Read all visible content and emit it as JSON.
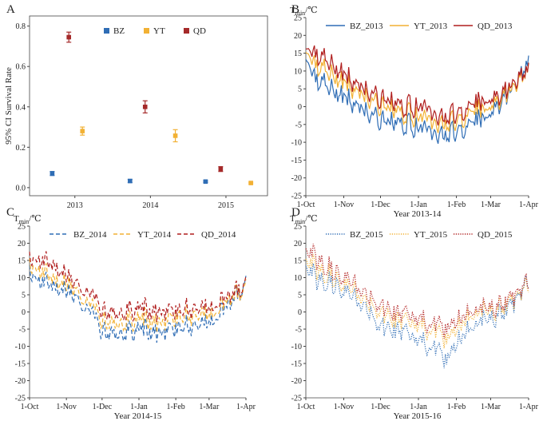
{
  "chart_data": [
    {
      "panel": "A",
      "type": "scatter",
      "ylabel": "95% CI Survival Rate",
      "xlabel": "",
      "ylim": [
        -0.04,
        0.85
      ],
      "yticks": [
        0.0,
        0.2,
        0.4,
        0.6,
        0.8
      ],
      "ytick_labels": [
        "0.0",
        "0.2",
        "0.4",
        "0.6",
        "0.8"
      ],
      "xticks": [
        2013,
        2014,
        2015
      ],
      "xtick_labels": [
        "2013",
        "2014",
        "2015"
      ],
      "legend_position": "top",
      "series": [
        {
          "name": "BZ",
          "color": "#2f6db5",
          "points": [
            {
              "x": 2012.7,
              "y": 0.07,
              "err": 0.01
            },
            {
              "x": 2013.73,
              "y": 0.033,
              "err": 0.008
            },
            {
              "x": 2014.73,
              "y": 0.03,
              "err": 0.004
            }
          ]
        },
        {
          "name": "YT",
          "color": "#f2b134",
          "points": [
            {
              "x": 2013.1,
              "y": 0.28,
              "err": 0.02
            },
            {
              "x": 2014.33,
              "y": 0.257,
              "err": 0.03
            },
            {
              "x": 2015.33,
              "y": 0.023,
              "err": 0.004
            }
          ]
        },
        {
          "name": "QD",
          "color": "#a52a2a",
          "points": [
            {
              "x": 2012.92,
              "y": 0.745,
              "err": 0.025
            },
            {
              "x": 2013.93,
              "y": 0.4,
              "err": 0.03
            },
            {
              "x": 2014.93,
              "y": 0.092,
              "err": 0.012
            }
          ]
        }
      ]
    },
    {
      "panel": "B",
      "type": "line",
      "ylabel": "T_min/℃",
      "xlabel": "Year 2013-14",
      "ylim": [
        -25,
        25
      ],
      "yticks": [
        -25,
        -20,
        -15,
        -10,
        -5,
        0,
        5,
        10,
        15,
        20,
        25
      ],
      "xtick_labels": [
        "1-Oct",
        "1-Nov",
        "1-Dec",
        "1-Jan",
        "1-Feb",
        "1-Mar",
        "1-Apr"
      ],
      "line_style": "solid",
      "legend_position": "top",
      "series": [
        {
          "name": "BZ_2013",
          "color": "#2f6db5",
          "keypoints": [
            [
              0,
              14
            ],
            [
              8,
              8
            ],
            [
              20,
              5
            ],
            [
              35,
              2
            ],
            [
              50,
              -2
            ],
            [
              65,
              -4
            ],
            [
              80,
              -5
            ],
            [
              95,
              -6
            ],
            [
              110,
              -8
            ],
            [
              125,
              -7
            ],
            [
              140,
              -4
            ],
            [
              150,
              -2
            ],
            [
              160,
              2
            ],
            [
              170,
              6
            ],
            [
              182,
              12
            ]
          ]
        },
        {
          "name": "YT_2013",
          "color": "#f2b134",
          "keypoints": [
            [
              0,
              16
            ],
            [
              8,
              12
            ],
            [
              20,
              9
            ],
            [
              35,
              6
            ],
            [
              50,
              2
            ],
            [
              65,
              0
            ],
            [
              80,
              -2
            ],
            [
              95,
              -3
            ],
            [
              110,
              -5
            ],
            [
              125,
              -4
            ],
            [
              140,
              -1
            ],
            [
              150,
              0
            ],
            [
              160,
              3
            ],
            [
              170,
              6
            ],
            [
              182,
              10
            ]
          ]
        },
        {
          "name": "QD_2013",
          "color": "#b01e1e",
          "keypoints": [
            [
              0,
              17
            ],
            [
              8,
              15
            ],
            [
              20,
              12
            ],
            [
              35,
              8
            ],
            [
              50,
              4
            ],
            [
              65,
              2
            ],
            [
              80,
              0
            ],
            [
              95,
              0
            ],
            [
              110,
              -3
            ],
            [
              125,
              -2
            ],
            [
              140,
              1
            ],
            [
              150,
              2
            ],
            [
              160,
              4
            ],
            [
              170,
              7
            ],
            [
              182,
              10
            ]
          ]
        }
      ]
    },
    {
      "panel": "C",
      "type": "line",
      "ylabel": "T_min/℃",
      "xlabel": "Year 2014-15",
      "ylim": [
        -25,
        25
      ],
      "yticks": [
        -25,
        -20,
        -15,
        -10,
        -5,
        0,
        5,
        10,
        15,
        20,
        25
      ],
      "xtick_labels": [
        "1-Oct",
        "1-Nov",
        "1-Dec",
        "1-Jan",
        "1-Feb",
        "1-Mar",
        "1-Apr"
      ],
      "line_style": "dashed",
      "legend_position": "top",
      "series": [
        {
          "name": "BZ_2014",
          "color": "#2f6db5",
          "keypoints": [
            [
              0,
              11
            ],
            [
              8,
              9
            ],
            [
              20,
              8
            ],
            [
              35,
              6
            ],
            [
              50,
              2
            ],
            [
              60,
              -6
            ],
            [
              70,
              -7
            ],
            [
              80,
              -6
            ],
            [
              95,
              -5
            ],
            [
              110,
              -6
            ],
            [
              125,
              -5
            ],
            [
              140,
              -3
            ],
            [
              155,
              -2
            ],
            [
              170,
              3
            ],
            [
              182,
              9
            ]
          ]
        },
        {
          "name": "YT_2014",
          "color": "#f2b134",
          "keypoints": [
            [
              0,
              13
            ],
            [
              8,
              12
            ],
            [
              20,
              10
            ],
            [
              35,
              8
            ],
            [
              50,
              4
            ],
            [
              60,
              -3
            ],
            [
              70,
              -4
            ],
            [
              80,
              -3
            ],
            [
              95,
              -2
            ],
            [
              110,
              -3
            ],
            [
              125,
              -2
            ],
            [
              140,
              0
            ],
            [
              155,
              0
            ],
            [
              170,
              4
            ],
            [
              182,
              8
            ]
          ]
        },
        {
          "name": "QD_2014",
          "color": "#b01e1e",
          "keypoints": [
            [
              0,
              15
            ],
            [
              8,
              15
            ],
            [
              20,
              14
            ],
            [
              35,
              10
            ],
            [
              50,
              7
            ],
            [
              60,
              0
            ],
            [
              70,
              -1
            ],
            [
              80,
              0
            ],
            [
              95,
              1
            ],
            [
              110,
              0
            ],
            [
              125,
              0
            ],
            [
              140,
              2
            ],
            [
              155,
              2
            ],
            [
              170,
              5
            ],
            [
              182,
              9
            ]
          ]
        }
      ]
    },
    {
      "panel": "D",
      "type": "line",
      "ylabel": "T_min/℃",
      "xlabel": "Year 2015-16",
      "ylim": [
        -25,
        25
      ],
      "yticks": [
        -25,
        -20,
        -15,
        -10,
        -5,
        0,
        5,
        10,
        15,
        20,
        25
      ],
      "xtick_labels": [
        "1-Oct",
        "1-Nov",
        "1-Dec",
        "1-Jan",
        "1-Feb",
        "1-Mar",
        "1-Apr"
      ],
      "line_style": "dotted",
      "legend_position": "top",
      "series": [
        {
          "name": "BZ_2015",
          "color": "#2f6db5",
          "keypoints": [
            [
              0,
              13
            ],
            [
              8,
              10
            ],
            [
              20,
              9
            ],
            [
              35,
              5
            ],
            [
              50,
              1
            ],
            [
              60,
              -4
            ],
            [
              75,
              -5
            ],
            [
              90,
              -8
            ],
            [
              105,
              -10
            ],
            [
              115,
              -14
            ],
            [
              125,
              -8
            ],
            [
              140,
              -3
            ],
            [
              155,
              -2
            ],
            [
              170,
              3
            ],
            [
              182,
              8
            ]
          ]
        },
        {
          "name": "YT_2015",
          "color": "#f2b134",
          "keypoints": [
            [
              0,
              15
            ],
            [
              8,
              13
            ],
            [
              20,
              11
            ],
            [
              35,
              7
            ],
            [
              50,
              3
            ],
            [
              60,
              0
            ],
            [
              75,
              -2
            ],
            [
              90,
              -4
            ],
            [
              105,
              -5
            ],
            [
              115,
              -8
            ],
            [
              125,
              -4
            ],
            [
              140,
              0
            ],
            [
              155,
              0
            ],
            [
              170,
              4
            ],
            [
              182,
              7
            ]
          ]
        },
        {
          "name": "QD_2015",
          "color": "#b01e1e",
          "keypoints": [
            [
              0,
              18
            ],
            [
              8,
              16
            ],
            [
              20,
              13
            ],
            [
              35,
              9
            ],
            [
              50,
              5
            ],
            [
              60,
              2
            ],
            [
              75,
              0
            ],
            [
              90,
              -2
            ],
            [
              105,
              -3
            ],
            [
              115,
              -5
            ],
            [
              125,
              -2
            ],
            [
              140,
              1
            ],
            [
              155,
              1
            ],
            [
              170,
              5
            ],
            [
              182,
              8
            ]
          ]
        }
      ]
    }
  ]
}
